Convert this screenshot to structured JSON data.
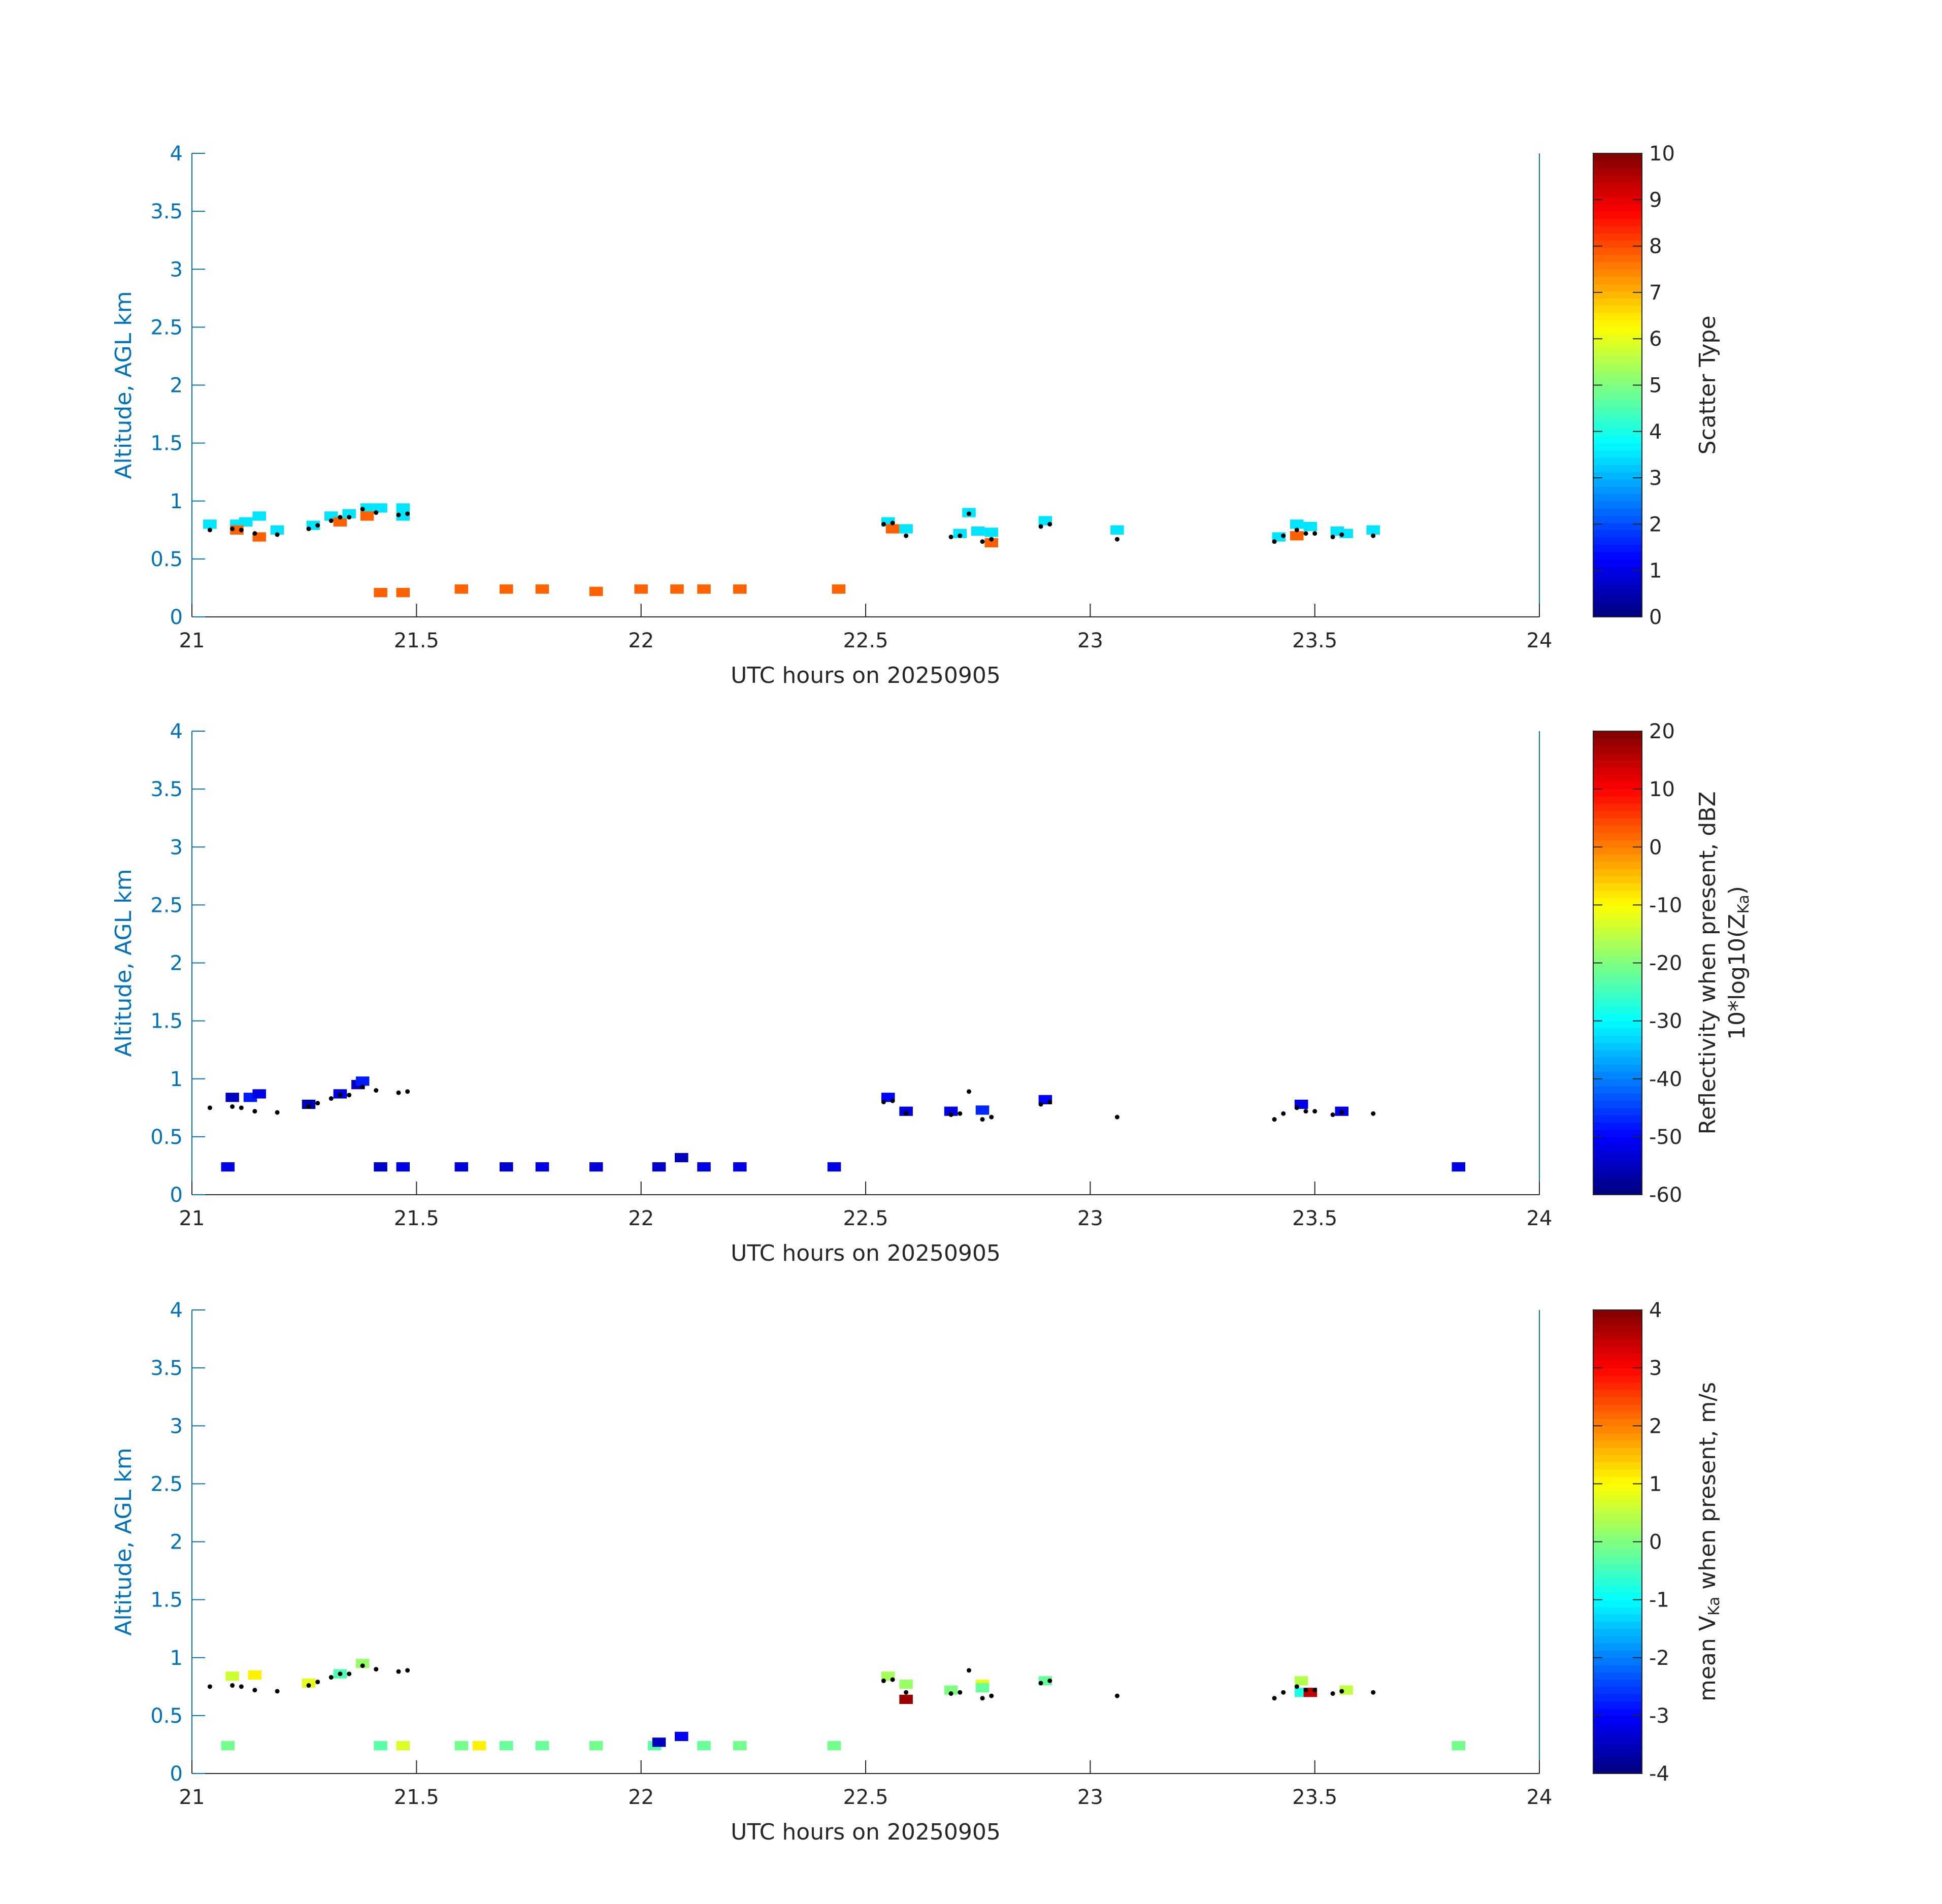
{
  "chart_data": [
    {
      "type": "heatmap",
      "xlabel": "UTC hours on 20250905",
      "ylabel": "Altitude, AGL km",
      "xlim": [
        21,
        24
      ],
      "ylim": [
        0,
        4
      ],
      "xticks": [
        "21",
        "21.5",
        "22",
        "22.5",
        "23",
        "23.5",
        "24"
      ],
      "yticks": [
        "0",
        "0.5",
        "1",
        "1.5",
        "2",
        "2.5",
        "3",
        "3.5",
        "4"
      ],
      "colorbar": {
        "label": "Scatter Type",
        "label_sub": "",
        "label_line2": "",
        "range": [
          0,
          10
        ],
        "ticks": [
          "0",
          "1",
          "2",
          "3",
          "4",
          "5",
          "6",
          "7",
          "8",
          "9",
          "10"
        ],
        "colormap": "jet"
      },
      "cells": [
        {
          "x": 21.04,
          "y": 0.8,
          "v": 3.5
        },
        {
          "x": 21.1,
          "y": 0.8,
          "v": 3.5
        },
        {
          "x": 21.12,
          "y": 0.82,
          "v": 3.5
        },
        {
          "x": 21.15,
          "y": 0.87,
          "v": 3.5
        },
        {
          "x": 21.1,
          "y": 0.75,
          "v": 7.8
        },
        {
          "x": 21.15,
          "y": 0.69,
          "v": 7.8
        },
        {
          "x": 21.19,
          "y": 0.75,
          "v": 3.5
        },
        {
          "x": 21.27,
          "y": 0.79,
          "v": 3.5
        },
        {
          "x": 21.31,
          "y": 0.87,
          "v": 3.5
        },
        {
          "x": 21.33,
          "y": 0.82,
          "v": 7.8
        },
        {
          "x": 21.35,
          "y": 0.89,
          "v": 3.5
        },
        {
          "x": 21.39,
          "y": 0.94,
          "v": 3.5
        },
        {
          "x": 21.39,
          "y": 0.87,
          "v": 7.8
        },
        {
          "x": 21.42,
          "y": 0.94,
          "v": 3.5
        },
        {
          "x": 21.47,
          "y": 0.94,
          "v": 3.5
        },
        {
          "x": 21.47,
          "y": 0.87,
          "v": 3.5
        },
        {
          "x": 21.42,
          "y": 0.21,
          "v": 7.8
        },
        {
          "x": 21.47,
          "y": 0.21,
          "v": 7.8
        },
        {
          "x": 21.6,
          "y": 0.24,
          "v": 7.8
        },
        {
          "x": 21.7,
          "y": 0.24,
          "v": 7.8
        },
        {
          "x": 21.78,
          "y": 0.24,
          "v": 7.8
        },
        {
          "x": 21.9,
          "y": 0.22,
          "v": 7.8
        },
        {
          "x": 22.0,
          "y": 0.24,
          "v": 7.8
        },
        {
          "x": 22.08,
          "y": 0.24,
          "v": 7.8
        },
        {
          "x": 22.14,
          "y": 0.24,
          "v": 7.8
        },
        {
          "x": 22.22,
          "y": 0.24,
          "v": 7.8
        },
        {
          "x": 22.44,
          "y": 0.24,
          "v": 7.8
        },
        {
          "x": 22.55,
          "y": 0.82,
          "v": 3.5
        },
        {
          "x": 22.56,
          "y": 0.76,
          "v": 7.8
        },
        {
          "x": 22.59,
          "y": 0.76,
          "v": 3.5
        },
        {
          "x": 22.71,
          "y": 0.72,
          "v": 3.5
        },
        {
          "x": 22.73,
          "y": 0.9,
          "v": 3.5
        },
        {
          "x": 22.75,
          "y": 0.74,
          "v": 3.5
        },
        {
          "x": 22.78,
          "y": 0.73,
          "v": 3.5
        },
        {
          "x": 22.78,
          "y": 0.64,
          "v": 7.8
        },
        {
          "x": 22.9,
          "y": 0.83,
          "v": 3.5
        },
        {
          "x": 23.06,
          "y": 0.75,
          "v": 3.5
        },
        {
          "x": 23.42,
          "y": 0.69,
          "v": 3.5
        },
        {
          "x": 23.46,
          "y": 0.8,
          "v": 3.5
        },
        {
          "x": 23.46,
          "y": 0.7,
          "v": 7.8
        },
        {
          "x": 23.49,
          "y": 0.78,
          "v": 3.5
        },
        {
          "x": 23.55,
          "y": 0.74,
          "v": 3.5
        },
        {
          "x": 23.57,
          "y": 0.72,
          "v": 3.5
        },
        {
          "x": 23.63,
          "y": 0.75,
          "v": 3.5
        }
      ],
      "points": [
        {
          "x": 21.04,
          "y": 0.75
        },
        {
          "x": 21.09,
          "y": 0.76
        },
        {
          "x": 21.11,
          "y": 0.75
        },
        {
          "x": 21.14,
          "y": 0.72
        },
        {
          "x": 21.19,
          "y": 0.71
        },
        {
          "x": 21.26,
          "y": 0.76
        },
        {
          "x": 21.28,
          "y": 0.79
        },
        {
          "x": 21.31,
          "y": 0.83
        },
        {
          "x": 21.33,
          "y": 0.86
        },
        {
          "x": 21.35,
          "y": 0.86
        },
        {
          "x": 21.38,
          "y": 0.93
        },
        {
          "x": 21.41,
          "y": 0.9
        },
        {
          "x": 21.46,
          "y": 0.88
        },
        {
          "x": 21.48,
          "y": 0.89
        },
        {
          "x": 22.54,
          "y": 0.8
        },
        {
          "x": 22.56,
          "y": 0.81
        },
        {
          "x": 22.59,
          "y": 0.7
        },
        {
          "x": 22.69,
          "y": 0.69
        },
        {
          "x": 22.71,
          "y": 0.7
        },
        {
          "x": 22.73,
          "y": 0.89
        },
        {
          "x": 22.76,
          "y": 0.65
        },
        {
          "x": 22.78,
          "y": 0.67
        },
        {
          "x": 22.89,
          "y": 0.78
        },
        {
          "x": 22.91,
          "y": 0.8
        },
        {
          "x": 23.06,
          "y": 0.67
        },
        {
          "x": 23.41,
          "y": 0.65
        },
        {
          "x": 23.43,
          "y": 0.7
        },
        {
          "x": 23.46,
          "y": 0.75
        },
        {
          "x": 23.48,
          "y": 0.72
        },
        {
          "x": 23.5,
          "y": 0.72
        },
        {
          "x": 23.54,
          "y": 0.69
        },
        {
          "x": 23.56,
          "y": 0.71
        },
        {
          "x": 23.63,
          "y": 0.7
        }
      ]
    },
    {
      "type": "heatmap",
      "xlabel": "UTC hours on 20250905",
      "ylabel": "Altitude, AGL km",
      "xlim": [
        21,
        24
      ],
      "ylim": [
        0,
        4
      ],
      "xticks": [
        "21",
        "21.5",
        "22",
        "22.5",
        "23",
        "23.5",
        "24"
      ],
      "yticks": [
        "0",
        "0.5",
        "1",
        "1.5",
        "2",
        "2.5",
        "3",
        "3.5",
        "4"
      ],
      "colorbar": {
        "label": "Reflectivity when present, dBZ",
        "label_line2": "10*log10(Z",
        "label_sub": "Ka",
        "label_tail": ")",
        "range": [
          -60,
          20
        ],
        "ticks": [
          "-60",
          "-50",
          "-40",
          "-30",
          "-20",
          "-10",
          "0",
          "10",
          "20"
        ],
        "colormap": "jet"
      },
      "cells": [
        {
          "x": 21.09,
          "y": 0.84,
          "v": -55
        },
        {
          "x": 21.08,
          "y": 0.24,
          "v": -52
        },
        {
          "x": 21.13,
          "y": 0.84,
          "v": -48
        },
        {
          "x": 21.15,
          "y": 0.87,
          "v": -52
        },
        {
          "x": 21.26,
          "y": 0.78,
          "v": -56
        },
        {
          "x": 21.33,
          "y": 0.87,
          "v": -52
        },
        {
          "x": 21.37,
          "y": 0.95,
          "v": -55
        },
        {
          "x": 21.38,
          "y": 0.98,
          "v": -48
        },
        {
          "x": 21.42,
          "y": 0.24,
          "v": -54
        },
        {
          "x": 21.47,
          "y": 0.24,
          "v": -52
        },
        {
          "x": 21.6,
          "y": 0.24,
          "v": -53
        },
        {
          "x": 21.7,
          "y": 0.24,
          "v": -54
        },
        {
          "x": 21.78,
          "y": 0.24,
          "v": -52
        },
        {
          "x": 21.9,
          "y": 0.24,
          "v": -53
        },
        {
          "x": 22.04,
          "y": 0.24,
          "v": -54
        },
        {
          "x": 22.09,
          "y": 0.32,
          "v": -55
        },
        {
          "x": 22.14,
          "y": 0.24,
          "v": -52
        },
        {
          "x": 22.22,
          "y": 0.24,
          "v": -52
        },
        {
          "x": 22.43,
          "y": 0.24,
          "v": -52
        },
        {
          "x": 22.55,
          "y": 0.84,
          "v": -50
        },
        {
          "x": 22.59,
          "y": 0.72,
          "v": -53
        },
        {
          "x": 22.69,
          "y": 0.72,
          "v": -52
        },
        {
          "x": 22.76,
          "y": 0.73,
          "v": -47
        },
        {
          "x": 22.9,
          "y": 0.82,
          "v": -50
        },
        {
          "x": 23.47,
          "y": 0.78,
          "v": -52
        },
        {
          "x": 23.56,
          "y": 0.72,
          "v": -52
        },
        {
          "x": 23.82,
          "y": 0.24,
          "v": -52
        }
      ],
      "points": [
        {
          "x": 21.04,
          "y": 0.75
        },
        {
          "x": 21.09,
          "y": 0.76
        },
        {
          "x": 21.11,
          "y": 0.75
        },
        {
          "x": 21.14,
          "y": 0.72
        },
        {
          "x": 21.19,
          "y": 0.71
        },
        {
          "x": 21.26,
          "y": 0.76
        },
        {
          "x": 21.28,
          "y": 0.79
        },
        {
          "x": 21.31,
          "y": 0.83
        },
        {
          "x": 21.33,
          "y": 0.86
        },
        {
          "x": 21.35,
          "y": 0.86
        },
        {
          "x": 21.38,
          "y": 0.93
        },
        {
          "x": 21.41,
          "y": 0.9
        },
        {
          "x": 21.46,
          "y": 0.88
        },
        {
          "x": 21.48,
          "y": 0.89
        },
        {
          "x": 22.54,
          "y": 0.8
        },
        {
          "x": 22.56,
          "y": 0.81
        },
        {
          "x": 22.59,
          "y": 0.7
        },
        {
          "x": 22.69,
          "y": 0.69
        },
        {
          "x": 22.71,
          "y": 0.7
        },
        {
          "x": 22.73,
          "y": 0.89
        },
        {
          "x": 22.76,
          "y": 0.65
        },
        {
          "x": 22.78,
          "y": 0.67
        },
        {
          "x": 22.89,
          "y": 0.78
        },
        {
          "x": 22.91,
          "y": 0.8
        },
        {
          "x": 23.06,
          "y": 0.67
        },
        {
          "x": 23.41,
          "y": 0.65
        },
        {
          "x": 23.43,
          "y": 0.7
        },
        {
          "x": 23.46,
          "y": 0.75
        },
        {
          "x": 23.48,
          "y": 0.72
        },
        {
          "x": 23.5,
          "y": 0.72
        },
        {
          "x": 23.54,
          "y": 0.69
        },
        {
          "x": 23.56,
          "y": 0.71
        },
        {
          "x": 23.63,
          "y": 0.7
        }
      ]
    },
    {
      "type": "heatmap",
      "xlabel": "UTC hours on 20250905",
      "ylabel": "Altitude, AGL km",
      "xlim": [
        21,
        24
      ],
      "ylim": [
        0,
        4
      ],
      "xticks": [
        "21",
        "21.5",
        "22",
        "22.5",
        "23",
        "23.5",
        "24"
      ],
      "yticks": [
        "0",
        "0.5",
        "1",
        "1.5",
        "2",
        "2.5",
        "3",
        "3.5",
        "4"
      ],
      "colorbar": {
        "label": "mean V",
        "label_sub": "Ka",
        "label_tail": " when present, m/s",
        "label_line2": "",
        "range": [
          -4,
          4
        ],
        "ticks": [
          "-4",
          "-3",
          "-2",
          "-1",
          "0",
          "1",
          "2",
          "3",
          "4"
        ],
        "colormap": "jet"
      },
      "cells": [
        {
          "x": 21.09,
          "y": 0.84,
          "v": 0.6
        },
        {
          "x": 21.08,
          "y": 0.24,
          "v": -0.1
        },
        {
          "x": 21.14,
          "y": 0.85,
          "v": 1.1
        },
        {
          "x": 21.26,
          "y": 0.78,
          "v": 0.8
        },
        {
          "x": 21.33,
          "y": 0.86,
          "v": -0.4
        },
        {
          "x": 21.38,
          "y": 0.95,
          "v": 0.2
        },
        {
          "x": 21.42,
          "y": 0.24,
          "v": -0.3
        },
        {
          "x": 21.47,
          "y": 0.24,
          "v": 0.7
        },
        {
          "x": 21.6,
          "y": 0.24,
          "v": -0.1
        },
        {
          "x": 21.64,
          "y": 0.24,
          "v": 1.1
        },
        {
          "x": 21.7,
          "y": 0.24,
          "v": -0.2
        },
        {
          "x": 21.78,
          "y": 0.24,
          "v": -0.2
        },
        {
          "x": 21.9,
          "y": 0.24,
          "v": -0.1
        },
        {
          "x": 22.03,
          "y": 0.24,
          "v": -0.3
        },
        {
          "x": 22.04,
          "y": 0.27,
          "v": -3.5
        },
        {
          "x": 22.09,
          "y": 0.32,
          "v": -3.0
        },
        {
          "x": 22.14,
          "y": 0.24,
          "v": -0.2
        },
        {
          "x": 22.22,
          "y": 0.24,
          "v": -0.1
        },
        {
          "x": 22.43,
          "y": 0.24,
          "v": -0.1
        },
        {
          "x": 22.55,
          "y": 0.84,
          "v": 0.3
        },
        {
          "x": 22.59,
          "y": 0.77,
          "v": 0.2
        },
        {
          "x": 22.59,
          "y": 0.64,
          "v": 3.8
        },
        {
          "x": 22.69,
          "y": 0.72,
          "v": 0.0
        },
        {
          "x": 22.76,
          "y": 0.77,
          "v": 0.8
        },
        {
          "x": 22.76,
          "y": 0.74,
          "v": -0.2
        },
        {
          "x": 22.9,
          "y": 0.8,
          "v": -0.2
        },
        {
          "x": 23.47,
          "y": 0.8,
          "v": 0.4
        },
        {
          "x": 23.47,
          "y": 0.7,
          "v": -0.8
        },
        {
          "x": 23.49,
          "y": 0.7,
          "v": 3.5
        },
        {
          "x": 23.57,
          "y": 0.72,
          "v": 0.5
        },
        {
          "x": 23.82,
          "y": 0.24,
          "v": -0.1
        }
      ],
      "points": [
        {
          "x": 21.04,
          "y": 0.75
        },
        {
          "x": 21.09,
          "y": 0.76
        },
        {
          "x": 21.11,
          "y": 0.75
        },
        {
          "x": 21.14,
          "y": 0.72
        },
        {
          "x": 21.19,
          "y": 0.71
        },
        {
          "x": 21.26,
          "y": 0.76
        },
        {
          "x": 21.28,
          "y": 0.79
        },
        {
          "x": 21.31,
          "y": 0.83
        },
        {
          "x": 21.33,
          "y": 0.86
        },
        {
          "x": 21.35,
          "y": 0.86
        },
        {
          "x": 21.38,
          "y": 0.93
        },
        {
          "x": 21.41,
          "y": 0.9
        },
        {
          "x": 21.46,
          "y": 0.88
        },
        {
          "x": 21.48,
          "y": 0.89
        },
        {
          "x": 22.54,
          "y": 0.8
        },
        {
          "x": 22.56,
          "y": 0.81
        },
        {
          "x": 22.59,
          "y": 0.7
        },
        {
          "x": 22.69,
          "y": 0.69
        },
        {
          "x": 22.71,
          "y": 0.7
        },
        {
          "x": 22.73,
          "y": 0.89
        },
        {
          "x": 22.76,
          "y": 0.65
        },
        {
          "x": 22.78,
          "y": 0.67
        },
        {
          "x": 22.89,
          "y": 0.78
        },
        {
          "x": 22.91,
          "y": 0.8
        },
        {
          "x": 23.06,
          "y": 0.67
        },
        {
          "x": 23.41,
          "y": 0.65
        },
        {
          "x": 23.43,
          "y": 0.7
        },
        {
          "x": 23.46,
          "y": 0.75
        },
        {
          "x": 23.48,
          "y": 0.72
        },
        {
          "x": 23.5,
          "y": 0.72
        },
        {
          "x": 23.54,
          "y": 0.69
        },
        {
          "x": 23.56,
          "y": 0.71
        },
        {
          "x": 23.63,
          "y": 0.7
        }
      ]
    }
  ]
}
